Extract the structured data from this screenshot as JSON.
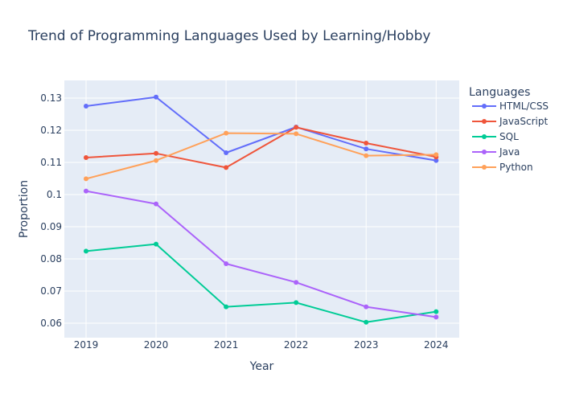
{
  "chart_data": {
    "type": "line",
    "title": "Trend of Programming Languages Used by Learning/Hobby",
    "xlabel": "Year",
    "ylabel": "Proportion",
    "x": [
      2019,
      2020,
      2021,
      2022,
      2023,
      2024
    ],
    "x_tick_labels": [
      "2019",
      "2020",
      "2021",
      "2022",
      "2023",
      "2024"
    ],
    "xlim": [
      2018.69,
      2024.33
    ],
    "ylim": [
      0.0555,
      0.1355
    ],
    "y_ticks": [
      0.06,
      0.07,
      0.08,
      0.09,
      0.1,
      0.11,
      0.12,
      0.13
    ],
    "y_tick_labels": [
      "0.06",
      "0.07",
      "0.08",
      "0.09",
      "0.1",
      "0.11",
      "0.12",
      "0.13"
    ],
    "grid": true,
    "background": "#e5ecf6",
    "legend": {
      "title": "Languages",
      "placement": "right"
    },
    "series": [
      {
        "name": "HTML/CSS",
        "color": "#636efa",
        "values": [
          0.1275,
          0.1303,
          0.113,
          0.121,
          0.1142,
          0.1106
        ]
      },
      {
        "name": "JavaScript",
        "color": "#ef553b",
        "values": [
          0.1115,
          0.1128,
          0.1084,
          0.1209,
          0.116,
          0.1117
        ]
      },
      {
        "name": "SQL",
        "color": "#00cc96",
        "values": [
          0.0824,
          0.0846,
          0.0651,
          0.0664,
          0.0603,
          0.0636
        ]
      },
      {
        "name": "Java",
        "color": "#ab63fa",
        "values": [
          0.1011,
          0.0971,
          0.0785,
          0.0727,
          0.0651,
          0.0619
        ]
      },
      {
        "name": "Python",
        "color": "#ffa15a",
        "values": [
          0.1049,
          0.1106,
          0.1191,
          0.1189,
          0.1121,
          0.1124
        ]
      }
    ]
  }
}
